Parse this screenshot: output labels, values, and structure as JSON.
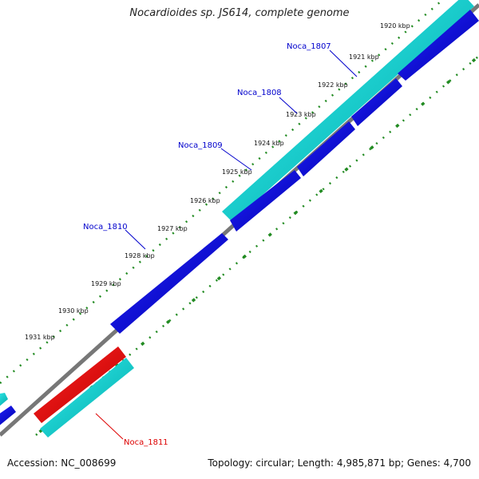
{
  "header": {
    "title": "Nocardioides sp. JS614, complete genome"
  },
  "footer": {
    "accession": "Accession: NC_008699",
    "summary": "Topology: circular; Length: 4,985,871 bp; Genes: 4,700"
  },
  "ticks": [
    {
      "label": "1920 kbp"
    },
    {
      "label": "1921 kbp"
    },
    {
      "label": "1922 kbp"
    },
    {
      "label": "1923 kbp"
    },
    {
      "label": "1924 kbp"
    },
    {
      "label": "1925 kbp"
    },
    {
      "label": "1926 kbp"
    },
    {
      "label": "1927 kbp"
    },
    {
      "label": "1928 kbp"
    },
    {
      "label": "1929 kbp"
    },
    {
      "label": "1930 kbp"
    },
    {
      "label": "1931 kbp"
    }
  ],
  "genes": [
    {
      "label": "Noca_1807",
      "color": "#0000cc"
    },
    {
      "label": "Noca_1808",
      "color": "#0000cc"
    },
    {
      "label": "Noca_1809",
      "color": "#0000cc"
    },
    {
      "label": "Noca_1810",
      "color": "#0000cc"
    },
    {
      "label": "Noca_1811",
      "color": "#dd0000"
    }
  ],
  "colors": {
    "cds_forward": "#0000ee",
    "cds_cyan": "#00cccc",
    "rna_red": "#ee0000",
    "backbone": "#777777",
    "gc_ticks": "#228b22"
  }
}
